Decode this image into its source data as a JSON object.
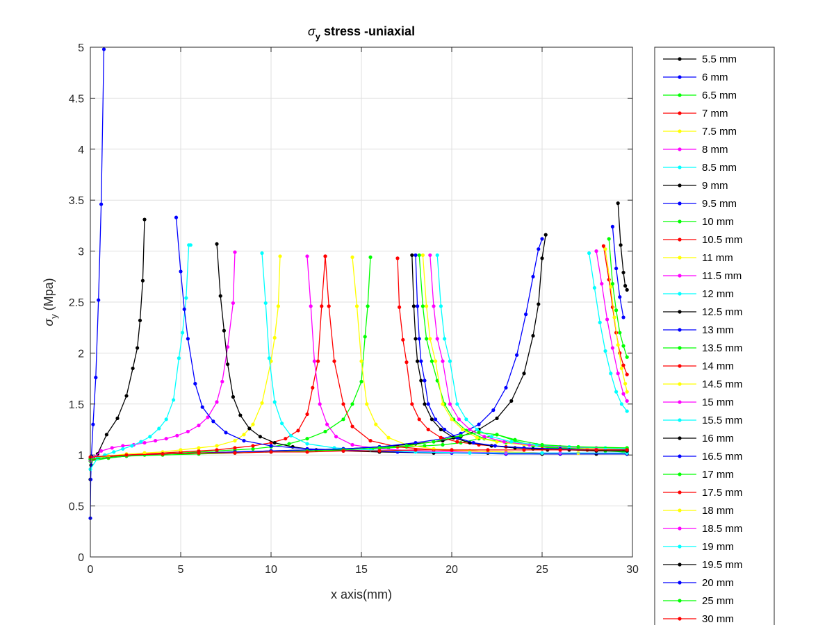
{
  "chart_data": {
    "type": "line",
    "title": {
      "symbol": "σ",
      "subscript": "y",
      "text": " stress -uniaxial"
    },
    "xlabel": "x axis(mm)",
    "ylabel": {
      "symbol": "σ",
      "subscript": "y",
      "text": " (Mpa)"
    },
    "xlim": [
      0,
      30
    ],
    "ylim": [
      0,
      5
    ],
    "xticks": [
      "0",
      "5",
      "10",
      "15",
      "20",
      "25",
      "30"
    ],
    "yticks": [
      "0",
      "0.5",
      "1",
      "1.5",
      "2",
      "2.5",
      "3",
      "3.5",
      "4",
      "4.5",
      "5"
    ],
    "grid": true,
    "legend_position": "outside-right",
    "marker": "dot",
    "series": [
      {
        "name": "5.5 mm",
        "color": "#000000",
        "x": [
          0,
          0.04,
          0.15,
          0.4,
          0.9,
          1.5,
          2.0,
          2.35,
          2.6,
          2.75,
          2.9,
          3.0
        ],
        "y": [
          0.76,
          0.9,
          0.97,
          1.01,
          1.2,
          1.36,
          1.58,
          1.85,
          2.05,
          2.32,
          2.71,
          3.31
        ]
      },
      {
        "name": "6 mm",
        "color": "#0000ff",
        "x": [
          0,
          0.02,
          0.06,
          0.15,
          0.3,
          0.45,
          0.6,
          0.75
        ],
        "y": [
          0.38,
          0.76,
          0.99,
          1.3,
          1.76,
          2.52,
          3.46,
          4.98
        ]
      },
      {
        "name": "6.5 mm",
        "color": "#00ff00",
        "x": [
          0,
          1,
          2,
          3,
          4,
          5,
          6,
          7,
          8,
          9,
          10,
          11,
          12,
          13,
          14,
          14.5,
          15,
          15.2,
          15.35,
          15.5
        ],
        "y": [
          0.94,
          0.97,
          0.99,
          1.0,
          1.01,
          1.02,
          1.03,
          1.04,
          1.05,
          1.06,
          1.08,
          1.11,
          1.16,
          1.23,
          1.35,
          1.5,
          1.72,
          2.16,
          2.46,
          2.94
        ]
      },
      {
        "name": "7 mm",
        "color": "#ff0000",
        "x": [
          0,
          1,
          2,
          3,
          4,
          5,
          6,
          7,
          8,
          9,
          10,
          10.8,
          11.5,
          12,
          12.3,
          12.6,
          12.8,
          13.0
        ],
        "y": [
          0.95,
          0.98,
          1.0,
          1.01,
          1.02,
          1.03,
          1.04,
          1.05,
          1.07,
          1.09,
          1.12,
          1.16,
          1.24,
          1.4,
          1.66,
          1.92,
          2.46,
          2.95
        ]
      },
      {
        "name": "7.5 mm",
        "color": "#ffff00",
        "x": [
          0,
          1,
          2,
          3,
          4,
          5,
          6,
          7,
          8,
          8.5,
          9,
          9.5,
          10,
          10.2,
          10.4,
          10.5
        ],
        "y": [
          0.96,
          0.99,
          1.01,
          1.02,
          1.03,
          1.05,
          1.07,
          1.09,
          1.14,
          1.2,
          1.3,
          1.51,
          1.92,
          2.15,
          2.46,
          2.95
        ]
      },
      {
        "name": "8 mm",
        "color": "#ff00ff",
        "x": [
          0,
          0.6,
          1.2,
          1.8,
          2.4,
          3,
          3.6,
          4.2,
          4.8,
          5.4,
          6,
          6.5,
          7,
          7.3,
          7.6,
          7.9,
          8.0
        ],
        "y": [
          0.95,
          1.04,
          1.07,
          1.09,
          1.1,
          1.12,
          1.14,
          1.16,
          1.19,
          1.23,
          1.29,
          1.37,
          1.52,
          1.72,
          2.06,
          2.49,
          2.99
        ]
      },
      {
        "name": "8.5 mm",
        "color": "#00ffff",
        "x": [
          0,
          0.4,
          0.8,
          1.3,
          1.8,
          2.3,
          2.8,
          3.3,
          3.8,
          4.2,
          4.6,
          4.9,
          5.1,
          5.3,
          5.45,
          5.55
        ],
        "y": [
          0.86,
          0.97,
          1.0,
          1.03,
          1.06,
          1.09,
          1.13,
          1.18,
          1.26,
          1.35,
          1.54,
          1.95,
          2.2,
          2.54,
          3.06,
          3.06
        ]
      },
      {
        "name": "9 mm",
        "color": "#000000",
        "x": [
          7.0,
          7.2,
          7.4,
          7.6,
          7.9,
          8.3,
          8.8,
          9.4,
          10.2,
          11.2,
          12.5,
          14,
          16,
          19,
          22,
          25,
          28,
          29.7
        ],
        "y": [
          3.07,
          2.56,
          2.22,
          1.89,
          1.57,
          1.39,
          1.26,
          1.18,
          1.12,
          1.08,
          1.05,
          1.04,
          1.03,
          1.02,
          1.02,
          1.01,
          1.01,
          1.01
        ]
      },
      {
        "name": "9.5 mm",
        "color": "#0000ff",
        "x": [
          4.75,
          5.0,
          5.2,
          5.4,
          5.8,
          6.2,
          6.8,
          7.5,
          8.5,
          10,
          12,
          14,
          17,
          20,
          23,
          26,
          29.7
        ],
        "y": [
          3.33,
          2.8,
          2.43,
          2.14,
          1.7,
          1.47,
          1.33,
          1.22,
          1.14,
          1.09,
          1.06,
          1.05,
          1.03,
          1.02,
          1.01,
          1.01,
          1.01
        ]
      },
      {
        "name": "10 mm",
        "color": "#00ff00",
        "x": [
          15.6,
          16.5,
          17.5,
          18.5,
          19.5,
          20.5,
          21.5,
          22.5,
          23.5,
          24.5,
          25.5,
          26.5,
          27.5,
          28.5,
          29.5,
          29.7
        ],
        "y": [
          1.06,
          1.07,
          1.08,
          1.09,
          1.1,
          1.12,
          1.16,
          1.2,
          1.14,
          1.09,
          1.07,
          1.06,
          1.05,
          1.04,
          1.03,
          1.03
        ]
      },
      {
        "name": "10.5 mm",
        "color": "#ff0000",
        "x": [
          13.0,
          13.2,
          13.5,
          14,
          14.5,
          15.5,
          17,
          19,
          21,
          23,
          25,
          27,
          29.7
        ],
        "y": [
          2.95,
          2.46,
          1.92,
          1.5,
          1.28,
          1.14,
          1.08,
          1.05,
          1.04,
          1.03,
          1.02,
          1.02,
          1.02
        ]
      },
      {
        "name": "11 mm",
        "color": "#ffff00",
        "x": [
          14.5,
          14.75,
          15.0,
          15.3,
          15.8,
          16.5,
          17.5,
          19,
          21,
          23,
          25,
          27,
          29.7
        ],
        "y": [
          2.94,
          2.46,
          1.92,
          1.5,
          1.3,
          1.17,
          1.1,
          1.06,
          1.04,
          1.03,
          1.02,
          1.02,
          1.02
        ]
      },
      {
        "name": "11.5 mm",
        "color": "#ff00ff",
        "x": [
          12.0,
          12.2,
          12.4,
          12.7,
          13.1,
          13.6,
          14.5,
          16,
          18,
          20,
          23,
          26,
          29.7
        ],
        "y": [
          2.95,
          2.46,
          1.92,
          1.5,
          1.3,
          1.18,
          1.1,
          1.06,
          1.04,
          1.03,
          1.02,
          1.02,
          1.02
        ]
      },
      {
        "name": "12 mm",
        "color": "#00ffff",
        "x": [
          9.5,
          9.7,
          9.9,
          10.2,
          10.6,
          11.1,
          12,
          13.5,
          15.5,
          18,
          21,
          25,
          29.7
        ],
        "y": [
          2.98,
          2.49,
          1.95,
          1.52,
          1.31,
          1.19,
          1.11,
          1.07,
          1.05,
          1.03,
          1.02,
          1.02,
          1.02
        ]
      },
      {
        "name": "12.5 mm",
        "color": "#000000",
        "x": [
          0,
          2,
          4,
          6,
          8,
          10,
          12,
          14,
          16,
          18,
          19.5,
          20.5,
          21.5,
          22.5,
          23.3,
          24,
          24.5,
          24.8,
          25.0,
          25.2
        ],
        "y": [
          0.96,
          0.99,
          1.01,
          1.02,
          1.03,
          1.04,
          1.05,
          1.06,
          1.08,
          1.11,
          1.14,
          1.18,
          1.25,
          1.36,
          1.53,
          1.8,
          2.17,
          2.48,
          2.93,
          3.16
        ]
      },
      {
        "name": "13 mm",
        "color": "#0000ff",
        "x": [
          0,
          2,
          4,
          6,
          8,
          10,
          12,
          14,
          16,
          18,
          19.5,
          20.5,
          21.5,
          22.3,
          23,
          23.6,
          24.1,
          24.5,
          24.8,
          25.0
        ],
        "y": [
          0.96,
          0.99,
          1.01,
          1.02,
          1.03,
          1.04,
          1.05,
          1.06,
          1.08,
          1.12,
          1.16,
          1.21,
          1.3,
          1.44,
          1.66,
          1.98,
          2.38,
          2.75,
          3.02,
          3.12
        ]
      },
      {
        "name": "13.5 mm",
        "color": "#00ff00",
        "x": [
          18.2,
          18.4,
          18.6,
          18.9,
          19.2,
          19.6,
          20.1,
          20.8,
          21.8,
          23,
          24.5,
          26,
          28,
          29.7
        ],
        "y": [
          2.96,
          2.46,
          2.14,
          1.92,
          1.73,
          1.5,
          1.35,
          1.24,
          1.16,
          1.12,
          1.09,
          1.07,
          1.06,
          1.05
        ]
      },
      {
        "name": "14 mm",
        "color": "#ff0000",
        "x": [
          17.0,
          17.1,
          17.3,
          17.5,
          17.8,
          18.2,
          18.7,
          19.4,
          20.3,
          21.5,
          23,
          25,
          27.5,
          29.7
        ],
        "y": [
          2.93,
          2.45,
          2.13,
          1.91,
          1.5,
          1.35,
          1.25,
          1.17,
          1.13,
          1.1,
          1.08,
          1.06,
          1.05,
          1.05
        ]
      },
      {
        "name": "14.5 mm",
        "color": "#ffff00",
        "x": [
          18.4,
          18.6,
          18.8,
          19.1,
          19.5,
          20.0,
          20.6,
          21.4,
          22.5,
          24,
          26,
          28,
          29.7
        ],
        "y": [
          2.96,
          2.46,
          2.14,
          1.92,
          1.5,
          1.35,
          1.25,
          1.17,
          1.13,
          1.1,
          1.08,
          1.06,
          1.06
        ]
      },
      {
        "name": "15 mm",
        "color": "#ff00ff",
        "x": [
          18.8,
          19.0,
          19.2,
          19.5,
          19.9,
          20.4,
          21.0,
          21.8,
          22.9,
          24.3,
          26,
          28,
          29.7
        ],
        "y": [
          2.96,
          2.46,
          2.14,
          1.92,
          1.5,
          1.35,
          1.25,
          1.18,
          1.13,
          1.1,
          1.08,
          1.07,
          1.06
        ]
      },
      {
        "name": "15.5 mm",
        "color": "#00ffff",
        "x": [
          19.2,
          19.4,
          19.6,
          19.9,
          20.3,
          20.8,
          21.4,
          22.2,
          23.3,
          24.7,
          26.5,
          28.5,
          29.7
        ],
        "y": [
          2.96,
          2.46,
          2.14,
          1.92,
          1.5,
          1.35,
          1.25,
          1.18,
          1.13,
          1.1,
          1.08,
          1.07,
          1.06
        ]
      },
      {
        "name": "16 mm",
        "color": "#000000",
        "x": [
          17.8,
          17.9,
          18.0,
          18.1,
          18.3,
          18.5,
          18.9,
          19.4,
          20.1,
          21,
          22.2,
          23.5,
          24.5,
          25.3,
          26.5,
          28,
          29.7
        ],
        "y": [
          2.96,
          2.46,
          2.14,
          1.92,
          1.73,
          1.5,
          1.35,
          1.25,
          1.17,
          1.12,
          1.09,
          1.07,
          1.06,
          1.05,
          1.05,
          1.04,
          1.04
        ]
      },
      {
        "name": "16.5 mm",
        "color": "#0000ff",
        "x": [
          18.0,
          18.1,
          18.2,
          18.3,
          18.5,
          18.7,
          19.1,
          19.6,
          20.3,
          21.2,
          22.4,
          24,
          26,
          28,
          29.7
        ],
        "y": [
          2.96,
          2.46,
          2.14,
          1.92,
          1.73,
          1.5,
          1.35,
          1.25,
          1.17,
          1.12,
          1.09,
          1.07,
          1.06,
          1.05,
          1.05
        ]
      },
      {
        "name": "17 mm",
        "color": "#00ff00",
        "x": [
          28.7,
          28.9,
          29.1,
          29.3,
          29.5,
          29.7
        ],
        "y": [
          3.12,
          2.68,
          2.42,
          2.2,
          2.07,
          1.96
        ]
      },
      {
        "name": "17.5 mm",
        "color": "#ff0000",
        "x": [
          28.4,
          28.7,
          28.9,
          29.1,
          29.3,
          29.5,
          29.7
        ],
        "y": [
          3.05,
          2.72,
          2.45,
          2.2,
          2.0,
          1.88,
          1.79
        ]
      },
      {
        "name": "18 mm",
        "color": "#ffff00",
        "x": [
          28.5,
          28.8,
          29.0,
          29.2,
          29.4,
          29.6,
          29.7
        ],
        "y": [
          3.02,
          2.65,
          2.35,
          2.08,
          1.85,
          1.7,
          1.62
        ]
      },
      {
        "name": "18.5 mm",
        "color": "#ff00ff",
        "x": [
          28.0,
          28.3,
          28.6,
          28.9,
          29.2,
          29.5,
          29.7
        ],
        "y": [
          3.0,
          2.68,
          2.33,
          2.05,
          1.8,
          1.6,
          1.53
        ]
      },
      {
        "name": "19 mm",
        "color": "#00ffff",
        "x": [
          27.6,
          27.9,
          28.2,
          28.5,
          28.8,
          29.1,
          29.4,
          29.7
        ],
        "y": [
          2.98,
          2.64,
          2.3,
          2.02,
          1.8,
          1.62,
          1.5,
          1.43
        ]
      },
      {
        "name": "19.5 mm",
        "color": "#000000",
        "x": [
          29.2,
          29.35,
          29.5,
          29.6,
          29.7
        ],
        "y": [
          3.47,
          3.06,
          2.79,
          2.66,
          2.62
        ]
      },
      {
        "name": "20 mm",
        "color": "#0000ff",
        "x": [
          28.9,
          29.1,
          29.3,
          29.5
        ],
        "y": [
          3.24,
          2.83,
          2.55,
          2.35
        ]
      },
      {
        "name": "25 mm",
        "color": "#00ff00",
        "x": [
          0,
          2,
          4,
          6,
          8,
          10,
          12,
          14,
          16,
          17.5,
          19,
          20.5,
          21.5,
          22.5,
          23.5,
          25,
          27,
          29.7
        ],
        "y": [
          0.96,
          0.99,
          1.0,
          1.01,
          1.02,
          1.03,
          1.04,
          1.05,
          1.07,
          1.09,
          1.13,
          1.19,
          1.22,
          1.2,
          1.15,
          1.1,
          1.08,
          1.07
        ]
      },
      {
        "name": "30 mm",
        "color": "#ff0000",
        "x": [
          0,
          2,
          4,
          6,
          8,
          10,
          12,
          14,
          16,
          18,
          20,
          22,
          24,
          26,
          28,
          29.7
        ],
        "y": [
          0.98,
          1.0,
          1.01,
          1.02,
          1.02,
          1.03,
          1.03,
          1.04,
          1.04,
          1.05,
          1.05,
          1.05,
          1.05,
          1.05,
          1.05,
          1.05
        ]
      }
    ]
  }
}
